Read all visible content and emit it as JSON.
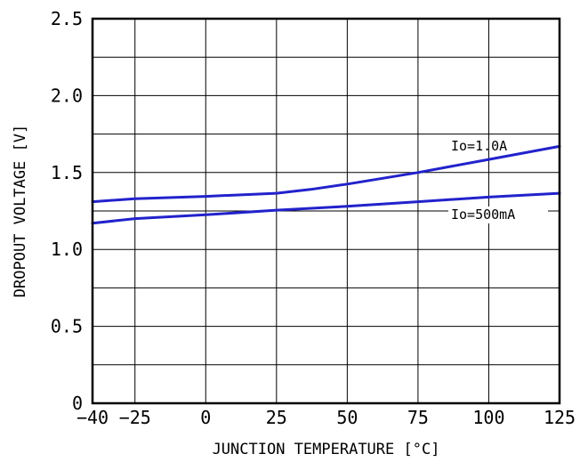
{
  "chart_data": {
    "type": "line",
    "xlabel": "JUNCTION TEMPERATURE [°C]",
    "ylabel": "DROPOUT VOLTAGE [V]",
    "xlim": [
      -40,
      125
    ],
    "ylim": [
      0,
      2.5
    ],
    "x_ticks": [
      -40,
      -25,
      0,
      25,
      50,
      75,
      100,
      125
    ],
    "x_tick_labels": [
      "−40",
      "−25",
      "0",
      "25",
      "50",
      "75",
      "100",
      "125"
    ],
    "y_ticks": [
      0,
      0.5,
      1.0,
      1.5,
      2.0,
      2.5
    ],
    "y_tick_labels": [
      "0",
      "0.5",
      "1.0",
      "1.5",
      "2.0",
      "2.5"
    ],
    "grid": true,
    "grid_x": [
      -40,
      -25,
      0,
      25,
      50,
      75,
      100,
      125
    ],
    "grid_y": [
      0,
      0.25,
      0.5,
      0.75,
      1.0,
      1.25,
      1.5,
      1.75,
      2.0,
      2.25,
      2.5
    ],
    "series": [
      {
        "name": "Io=1.0A",
        "color": "#2222cc",
        "x": [
          -40,
          -25,
          0,
          25,
          37,
          50,
          75,
          100,
          125
        ],
        "y": [
          1.31,
          1.33,
          1.345,
          1.365,
          1.39,
          1.425,
          1.5,
          1.585,
          1.67
        ]
      },
      {
        "name": "Io=500mA",
        "color": "#2222cc",
        "x": [
          -40,
          -25,
          0,
          25,
          50,
          75,
          100,
          125
        ],
        "y": [
          1.17,
          1.2,
          1.225,
          1.255,
          1.28,
          1.31,
          1.34,
          1.365
        ]
      }
    ]
  }
}
